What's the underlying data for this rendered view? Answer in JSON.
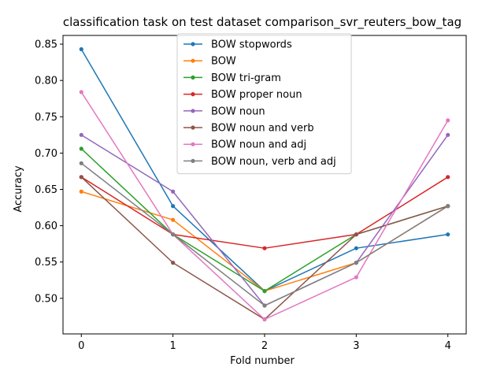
{
  "chart_data": {
    "type": "line",
    "title": "classification task on test dataset comparison_svr_reuters_bow_tag",
    "xlabel": "Fold number",
    "ylabel": "Accuracy",
    "x": [
      0,
      1,
      2,
      3,
      4
    ],
    "xlim": [
      -0.2,
      4.2
    ],
    "ylim": [
      0.451,
      0.862
    ],
    "xticks": [
      0,
      1,
      2,
      3,
      4
    ],
    "yticks": [
      0.5,
      0.55,
      0.6,
      0.65,
      0.7,
      0.75,
      0.8,
      0.85
    ],
    "ytick_labels": [
      "0.50",
      "0.55",
      "0.60",
      "0.65",
      "0.70",
      "0.75",
      "0.80",
      "0.85"
    ],
    "grid": false,
    "legend_position": "top-center",
    "series": [
      {
        "name": "BOW stopwords",
        "color": "#1f77b4",
        "values": [
          0.843,
          0.627,
          0.51,
          0.569,
          0.588
        ]
      },
      {
        "name": "BOW",
        "color": "#ff7f0e",
        "values": [
          0.647,
          0.608,
          0.51,
          0.549,
          0.627
        ]
      },
      {
        "name": "BOW tri-gram",
        "color": "#2ca02c",
        "values": [
          0.706,
          0.588,
          0.51,
          0.588,
          0.627
        ]
      },
      {
        "name": "BOW proper noun",
        "color": "#d62728",
        "values": [
          0.667,
          0.588,
          0.569,
          0.588,
          0.667
        ]
      },
      {
        "name": "BOW noun",
        "color": "#9467bd",
        "values": [
          0.725,
          0.647,
          0.49,
          0.549,
          0.725
        ]
      },
      {
        "name": "BOW noun and verb",
        "color": "#8c564b",
        "values": [
          0.667,
          0.549,
          0.471,
          0.588,
          0.627
        ]
      },
      {
        "name": "BOW noun and adj",
        "color": "#e377c2",
        "values": [
          0.784,
          0.588,
          0.471,
          0.529,
          0.745
        ]
      },
      {
        "name": "BOW noun, verb and adj",
        "color": "#7f7f7f",
        "values": [
          0.686,
          0.588,
          0.49,
          0.549,
          0.627
        ]
      }
    ]
  }
}
